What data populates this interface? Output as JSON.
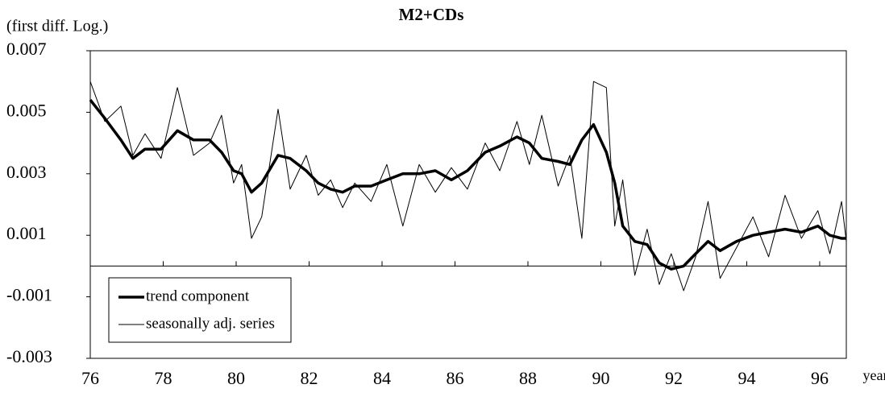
{
  "chart_data": {
    "type": "line",
    "title": "M2+CDs",
    "y_label": "(first diff. Log.)",
    "x_label": "year",
    "x": [
      76.0,
      76.4,
      76.84,
      77.17,
      77.5,
      77.94,
      78.39,
      78.83,
      79.27,
      79.6,
      79.93,
      80.15,
      80.42,
      80.7,
      81.15,
      81.48,
      81.92,
      82.25,
      82.59,
      82.92,
      83.25,
      83.7,
      84.13,
      84.57,
      85.02,
      85.46,
      85.9,
      86.34,
      86.83,
      87.23,
      87.7,
      88.04,
      88.38,
      88.83,
      89.15,
      89.48,
      89.8,
      90.15,
      90.38,
      90.6,
      90.93,
      91.27,
      91.6,
      91.93,
      92.27,
      92.6,
      92.94,
      93.27,
      93.72,
      94.17,
      94.6,
      95.05,
      95.5,
      95.95,
      96.28,
      96.6,
      96.73
    ],
    "series": [
      {
        "name": "trend component",
        "color": "#000000",
        "line_width": 3.5,
        "values": [
          0.0054,
          0.0048,
          0.0041,
          0.0035,
          0.0038,
          0.0038,
          0.0044,
          0.0041,
          0.0041,
          0.0037,
          0.0031,
          0.003,
          0.0024,
          0.0027,
          0.0036,
          0.0035,
          0.0031,
          0.0027,
          0.0025,
          0.0024,
          0.0026,
          0.0026,
          0.0028,
          0.003,
          0.003,
          0.0031,
          0.0028,
          0.0031,
          0.0037,
          0.0039,
          0.0042,
          0.004,
          0.0035,
          0.0034,
          0.0033,
          0.0041,
          0.0046,
          0.0037,
          0.0027,
          0.0013,
          0.0008,
          0.0007,
          0.0001,
          -0.0001,
          0.0,
          0.0004,
          0.0008,
          0.0005,
          0.0008,
          0.001,
          0.0011,
          0.0012,
          0.0011,
          0.0013,
          0.001,
          0.0009,
          0.0009
        ]
      },
      {
        "name": "seasonally adj. series",
        "color": "#000000",
        "line_width": 1,
        "values": [
          0.006,
          0.0047,
          0.0052,
          0.0036,
          0.0043,
          0.0035,
          0.0058,
          0.0036,
          0.004,
          0.0049,
          0.0027,
          0.0033,
          0.0009,
          0.0016,
          0.0051,
          0.0025,
          0.0036,
          0.0023,
          0.0028,
          0.0019,
          0.0027,
          0.0021,
          0.0033,
          0.0013,
          0.0033,
          0.0024,
          0.0032,
          0.0025,
          0.004,
          0.0031,
          0.0047,
          0.0033,
          0.0049,
          0.0026,
          0.0036,
          0.0009,
          0.006,
          0.0058,
          0.0013,
          0.0028,
          -0.0003,
          0.0012,
          -0.0006,
          0.0004,
          -0.0008,
          0.0003,
          0.0021,
          -0.0004,
          0.0006,
          0.0016,
          0.0003,
          0.0023,
          0.0009,
          0.0018,
          0.0004,
          0.0021,
          0.0008
        ]
      }
    ],
    "xlim": [
      76,
      96.73
    ],
    "xticks": [
      76,
      78,
      80,
      82,
      84,
      86,
      88,
      90,
      92,
      94,
      96
    ],
    "ylim": [
      -0.003,
      0.007
    ],
    "yticks": [
      -0.003,
      -0.001,
      0.001,
      0.003,
      0.005,
      0.007
    ],
    "grid": false,
    "legend": "lower left"
  }
}
